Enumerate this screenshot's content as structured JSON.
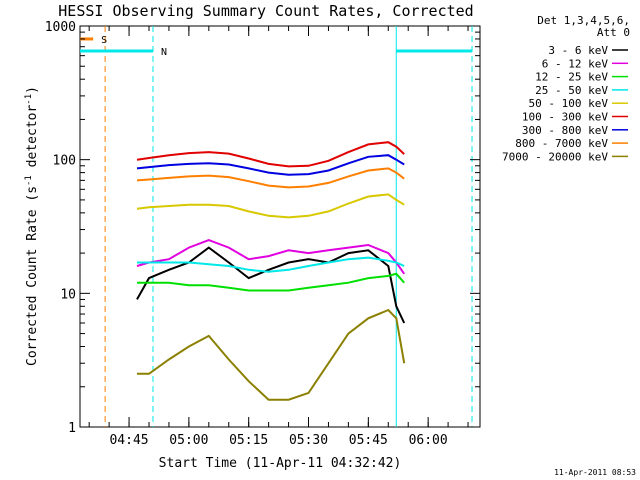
{
  "colors": {
    "3 - 6 keV": "#000000",
    "6 - 12 keV": "#e000e0",
    "12 - 25 keV": "#00e000",
    "25 - 50 keV": "#00e8e8",
    "50 - 100 keV": "#d8c800",
    "100 - 300 keV": "#e00000",
    "300 - 800 keV": "#0000e0",
    "800 - 7000 keV": "#ff7f00",
    "7000 - 20000 keV": "#8b8000",
    "flag_S": "#ff7f00",
    "flag_N": "#00e8e8"
  },
  "chart_data": {
    "type": "line",
    "title": "HESSI Observing Summary Count Rates, Corrected",
    "xlabel": "Start Time (11-Apr-11 04:32:42)",
    "ylabel": "Corrected Count Rate (s⁻¹ detector⁻¹)",
    "y_scale": "log",
    "ylim": [
      1,
      1000
    ],
    "xlim": [
      "04:32:42",
      "06:13:00"
    ],
    "x_ticks": [
      "04:45",
      "05:00",
      "05:15",
      "05:30",
      "05:45",
      "06:00"
    ],
    "y_ticks": [
      "1",
      "10",
      "100",
      "1000"
    ],
    "legend_header": [
      "Det 1,3,4,5,6,",
      "Att 0"
    ],
    "legend_position": "right",
    "timestamp": "11-Apr-2011 08:53",
    "flags": [
      {
        "label": "S",
        "start": "04:32:42",
        "end": "04:36:00",
        "level": 800,
        "color_key": "flag_S"
      },
      {
        "label": "N",
        "start": "04:32:42",
        "end": "04:51:00",
        "level": 650,
        "color_key": "flag_N"
      },
      {
        "label": "",
        "start": "05:52:00",
        "end": "06:11:00",
        "level": 650,
        "color_key": "flag_N"
      }
    ],
    "vlines": [
      {
        "time": "04:39:00",
        "color_key": "flag_S"
      },
      {
        "time": "04:51:00",
        "color_key": "flag_N"
      },
      {
        "time": "05:52:00",
        "color_key": "flag_N",
        "solid": true
      },
      {
        "time": "06:11:00",
        "color_key": "flag_N"
      }
    ],
    "series": [
      {
        "name": "3 - 6 keV",
        "x": [
          "04:47",
          "04:50",
          "04:55",
          "05:00",
          "05:05",
          "05:10",
          "05:15",
          "05:20",
          "05:25",
          "05:30",
          "05:35",
          "05:40",
          "05:45",
          "05:50",
          "05:52",
          "05:54"
        ],
        "y": [
          9,
          13,
          15,
          17,
          22,
          17,
          13,
          15,
          17,
          18,
          17,
          20,
          21,
          16,
          8,
          6
        ]
      },
      {
        "name": "6 - 12 keV",
        "x": [
          "04:47",
          "04:50",
          "04:55",
          "05:00",
          "05:05",
          "05:10",
          "05:15",
          "05:20",
          "05:25",
          "05:30",
          "05:35",
          "05:40",
          "05:45",
          "05:50",
          "05:52",
          "05:54"
        ],
        "y": [
          16,
          17,
          18,
          22,
          25,
          22,
          18,
          19,
          21,
          20,
          21,
          22,
          23,
          20,
          17,
          14
        ]
      },
      {
        "name": "12 - 25 keV",
        "x": [
          "04:47",
          "04:50",
          "04:55",
          "05:00",
          "05:05",
          "05:10",
          "05:15",
          "05:20",
          "05:25",
          "05:30",
          "05:35",
          "05:40",
          "05:45",
          "05:50",
          "05:52",
          "05:54"
        ],
        "y": [
          12,
          12,
          12,
          11.5,
          11.5,
          11,
          10.5,
          10.5,
          10.5,
          11,
          11.5,
          12,
          13,
          13.5,
          14,
          12
        ]
      },
      {
        "name": "25 - 50 keV",
        "x": [
          "04:47",
          "04:50",
          "04:55",
          "05:00",
          "05:05",
          "05:10",
          "05:15",
          "05:20",
          "05:25",
          "05:30",
          "05:35",
          "05:40",
          "05:45",
          "05:50",
          "05:52",
          "05:54"
        ],
        "y": [
          17,
          17,
          17,
          17,
          16.5,
          16,
          15,
          14.5,
          15,
          16,
          17,
          18,
          18.5,
          17.5,
          17,
          16
        ]
      },
      {
        "name": "50 - 100 keV",
        "x": [
          "04:47",
          "04:50",
          "04:55",
          "05:00",
          "05:05",
          "05:10",
          "05:15",
          "05:20",
          "05:25",
          "05:30",
          "05:35",
          "05:40",
          "05:45",
          "05:50",
          "05:52",
          "05:54"
        ],
        "y": [
          43,
          44,
          45,
          46,
          46,
          45,
          41,
          38,
          37,
          38,
          41,
          47,
          53,
          55,
          50,
          46
        ]
      },
      {
        "name": "100 - 300 keV",
        "x": [
          "04:47",
          "04:50",
          "04:55",
          "05:00",
          "05:05",
          "05:10",
          "05:15",
          "05:20",
          "05:25",
          "05:30",
          "05:35",
          "05:40",
          "05:45",
          "05:50",
          "05:52",
          "05:54"
        ],
        "y": [
          100,
          103,
          108,
          112,
          114,
          111,
          102,
          93,
          89,
          90,
          98,
          114,
          130,
          135,
          125,
          110
        ]
      },
      {
        "name": "300 - 800 keV",
        "x": [
          "04:47",
          "04:50",
          "04:55",
          "05:00",
          "05:05",
          "05:10",
          "05:15",
          "05:20",
          "05:25",
          "05:30",
          "05:35",
          "05:40",
          "05:45",
          "05:50",
          "05:52",
          "05:54"
        ],
        "y": [
          86,
          88,
          91,
          93,
          94,
          92,
          86,
          80,
          77,
          78,
          83,
          94,
          105,
          108,
          100,
          92
        ]
      },
      {
        "name": "800 - 7000 keV",
        "x": [
          "04:47",
          "04:50",
          "04:55",
          "05:00",
          "05:05",
          "05:10",
          "05:15",
          "05:20",
          "05:25",
          "05:30",
          "05:35",
          "05:40",
          "05:45",
          "05:50",
          "05:52",
          "05:54"
        ],
        "y": [
          70,
          71,
          73,
          75,
          76,
          74,
          69,
          64,
          62,
          63,
          67,
          75,
          83,
          86,
          80,
          72
        ]
      },
      {
        "name": "7000 - 20000 keV",
        "x": [
          "04:47",
          "04:50",
          "04:55",
          "05:00",
          "05:05",
          "05:10",
          "05:15",
          "05:20",
          "05:25",
          "05:30",
          "05:35",
          "05:40",
          "05:45",
          "05:50",
          "05:52",
          "05:54"
        ],
        "y": [
          2.5,
          2.5,
          3.2,
          4,
          4.8,
          3.2,
          2.2,
          1.6,
          1.6,
          1.8,
          3,
          5,
          6.5,
          7.5,
          6.5,
          3
        ]
      }
    ]
  }
}
